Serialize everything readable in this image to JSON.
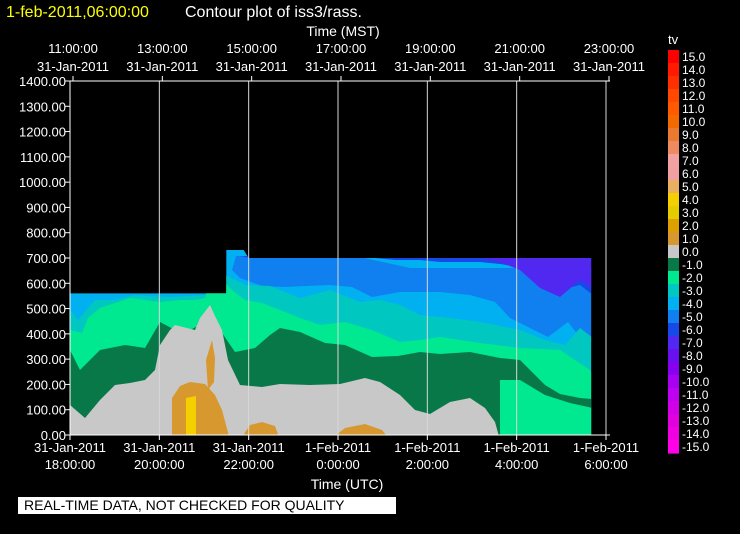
{
  "header": {
    "timestamp": "1-feb-2011,06:00:00",
    "title": "Contour plot of iss3/rass."
  },
  "footer_note": "REAL-TIME DATA, NOT CHECKED FOR QUALITY",
  "chart_data": {
    "type": "heatmap",
    "title": "Contour plot of iss3/rass.",
    "y_axis": {
      "ylim": [
        0,
        1400
      ],
      "ticks": [
        "0.00",
        "100.00",
        "200.00",
        "300.00",
        "400.00",
        "500.00",
        "600.00",
        "700.00",
        "800.00",
        "900.00",
        "1000.00",
        "1100.00",
        "1200.00",
        "1300.00",
        "1400.00"
      ]
    },
    "x_axis_bottom": {
      "label": "Time (UTC)",
      "ticks": [
        {
          "date": "31-Jan-2011",
          "time": "18:00:00"
        },
        {
          "date": "31-Jan-2011",
          "time": "20:00:00"
        },
        {
          "date": "31-Jan-2011",
          "time": "22:00:00"
        },
        {
          "date": "1-Feb-2011",
          "time": "0:00:00"
        },
        {
          "date": "1-Feb-2011",
          "time": "2:00:00"
        },
        {
          "date": "1-Feb-2011",
          "time": "4:00:00"
        },
        {
          "date": "1-Feb-2011",
          "time": "6:00:00"
        }
      ]
    },
    "x_axis_top": {
      "label": "Time (MST)",
      "ticks": [
        {
          "time": "11:00:00",
          "date": "31-Jan-2011"
        },
        {
          "time": "13:00:00",
          "date": "31-Jan-2011"
        },
        {
          "time": "15:00:00",
          "date": "31-Jan-2011"
        },
        {
          "time": "17:00:00",
          "date": "31-Jan-2011"
        },
        {
          "time": "19:00:00",
          "date": "31-Jan-2011"
        },
        {
          "time": "21:00:00",
          "date": "31-Jan-2011"
        },
        {
          "time": "23:00:00",
          "date": "31-Jan-2011"
        }
      ]
    },
    "grid": "vertical",
    "legend": {
      "title": "tv",
      "placement": "right",
      "entries": [
        {
          "label": "15.0",
          "color": "#ff0000"
        },
        {
          "label": "14.0",
          "color": "#ff1a00"
        },
        {
          "label": "13.0",
          "color": "#ff3000"
        },
        {
          "label": "12.0",
          "color": "#ff4800"
        },
        {
          "label": "11.0",
          "color": "#ff5a00"
        },
        {
          "label": "10.0",
          "color": "#f26a00"
        },
        {
          "label": "9.0",
          "color": "#ea7a30"
        },
        {
          "label": "8.0",
          "color": "#ee8a60"
        },
        {
          "label": "7.0",
          "color": "#f2a0a0"
        },
        {
          "label": "6.0",
          "color": "#f0a0a0"
        },
        {
          "label": "5.0",
          "color": "#e8b060"
        },
        {
          "label": "4.0",
          "color": "#f4d000"
        },
        {
          "label": "3.0",
          "color": "#e4cc00"
        },
        {
          "label": "2.0",
          "color": "#dca000"
        },
        {
          "label": "1.0",
          "color": "#d89830"
        },
        {
          "label": "0.0",
          "color": "#c8c8c8"
        },
        {
          "label": "-1.0",
          "color": "#087848"
        },
        {
          "label": "-2.0",
          "color": "#00e890"
        },
        {
          "label": "-3.0",
          "color": "#00c8c0"
        },
        {
          "label": "-4.0",
          "color": "#00b0f0"
        },
        {
          "label": "-5.0",
          "color": "#1080f0"
        },
        {
          "label": "-6.0",
          "color": "#1848e8"
        },
        {
          "label": "-7.0",
          "color": "#5028f0"
        },
        {
          "label": "-8.0",
          "color": "#6810f0"
        },
        {
          "label": "-9.0",
          "color": "#8800f0"
        },
        {
          "label": "-10.0",
          "color": "#a800f0"
        },
        {
          "label": "-11.0",
          "color": "#c000f0"
        },
        {
          "label": "-12.0",
          "color": "#d000e8"
        },
        {
          "label": "-13.0",
          "color": "#e000e0"
        },
        {
          "label": "-14.0",
          "color": "#f000e0"
        },
        {
          "label": "-15.0",
          "color": "#ff00e8"
        }
      ]
    },
    "data_extent": {
      "start_time_utc": "31-Jan-2011 18:00:00",
      "end_time_utc": "1-Feb-2011 05:40:00",
      "max_height": [
        {
          "time_utc": "31-Jan-2011 18:00:00",
          "height": 560
        },
        {
          "time_utc": "31-Jan-2011 21:30:00",
          "height": 560
        },
        {
          "time_utc": "31-Jan-2011 21:30:00",
          "height": 840
        },
        {
          "time_utc": "31-Jan-2011 22:00:00",
          "height": 700
        },
        {
          "time_utc": "1-Feb-2011 05:40:00",
          "height": 700
        }
      ]
    }
  }
}
